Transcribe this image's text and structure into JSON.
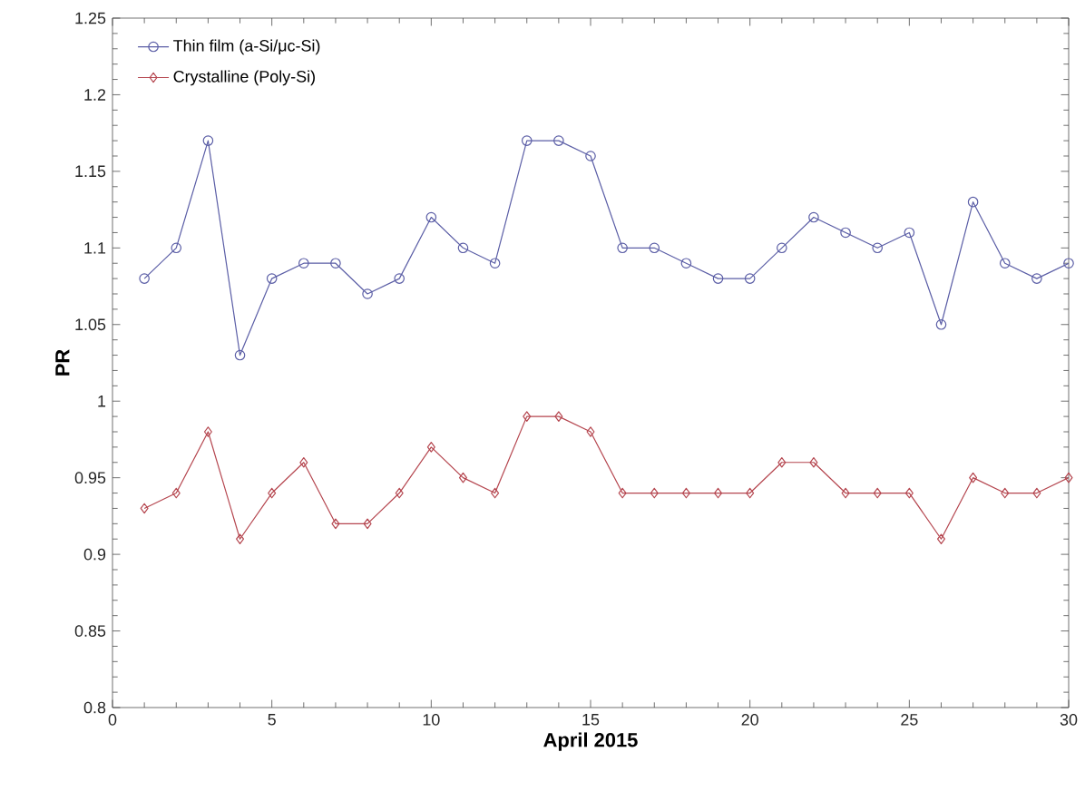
{
  "chart_data": {
    "type": "line",
    "xlabel": "April 2015",
    "ylabel": "PR",
    "x": [
      1,
      2,
      3,
      4,
      5,
      6,
      7,
      8,
      9,
      10,
      11,
      12,
      13,
      14,
      15,
      16,
      17,
      18,
      19,
      20,
      21,
      22,
      23,
      24,
      25,
      26,
      27,
      28,
      29,
      30
    ],
    "series": [
      {
        "name": "Thin film (a-Si/μc-Si)",
        "color": "#5b5ea6",
        "marker": "circle",
        "values": [
          1.08,
          1.1,
          1.17,
          1.03,
          1.08,
          1.09,
          1.09,
          1.07,
          1.08,
          1.12,
          1.1,
          1.09,
          1.17,
          1.17,
          1.16,
          1.1,
          1.1,
          1.09,
          1.08,
          1.08,
          1.1,
          1.12,
          1.11,
          1.1,
          1.11,
          1.05,
          1.13,
          1.09,
          1.08,
          1.09
        ]
      },
      {
        "name": "Crystalline (Poly-Si)",
        "color": "#b5464f",
        "marker": "diamond",
        "values": [
          0.93,
          0.94,
          0.98,
          0.91,
          0.94,
          0.96,
          0.92,
          0.92,
          0.94,
          0.97,
          0.95,
          0.94,
          0.99,
          0.99,
          0.98,
          0.94,
          0.94,
          0.94,
          0.94,
          0.94,
          0.96,
          0.96,
          0.94,
          0.94,
          0.94,
          0.91,
          0.95,
          0.94,
          0.94,
          0.95
        ]
      }
    ],
    "xlim": [
      0,
      30
    ],
    "xticks": [
      0,
      5,
      10,
      15,
      20,
      25,
      30
    ],
    "ylim": [
      0.8,
      1.25
    ],
    "yticks": [
      0.8,
      0.85,
      0.9,
      0.95,
      1,
      1.05,
      1.1,
      1.15,
      1.2,
      1.25
    ],
    "grid": false,
    "legend": "top left",
    "line_style": "solid"
  }
}
